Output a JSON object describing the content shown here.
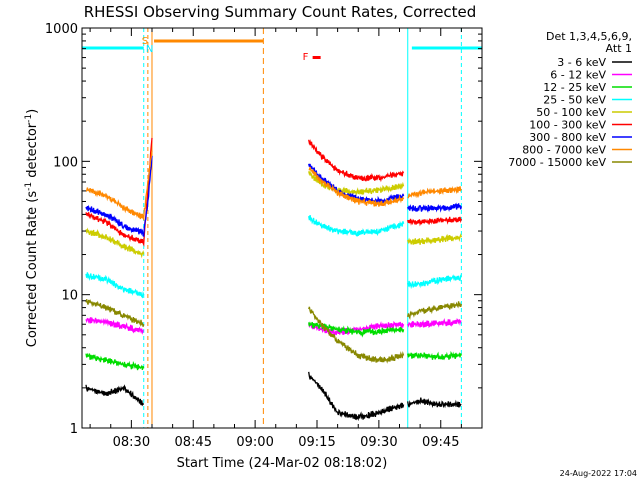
{
  "chart_data": {
    "type": "line",
    "title": "RHESSI Observing Summary Count Rates, Corrected",
    "xlabel": "Start Time (24-Mar-02 08:18:02)",
    "ylabel": "Corrected Count Rate (s⁻¹ detector⁻¹)",
    "ylabel_main": "Corrected Count Rate (s",
    "ylabel_sup1": "-1",
    "ylabel_mid": " detector",
    "ylabel_sup2": "-1",
    "ylabel_end": ")",
    "yscale": "log",
    "xlim": [
      "08:18:02",
      "09:55:00"
    ],
    "ylim": [
      1,
      1000
    ],
    "xticks": [
      "08:30",
      "08:45",
      "09:00",
      "09:15",
      "09:30",
      "09:45"
    ],
    "yticks": [
      "1",
      "10",
      "100",
      "1000"
    ],
    "legend_header": [
      "Det 1,3,4,5,6,9,",
      "Att 1"
    ],
    "legend_position": "right",
    "timestamp": "24-Aug-2022 17:04",
    "flags": [
      {
        "label": "S",
        "time": "08:33",
        "color": "#ff8c00"
      },
      {
        "label": "N",
        "time": "08:34",
        "color": "#00e5ff"
      },
      {
        "label": "F",
        "time": "09:12",
        "color": "#ff0000"
      }
    ],
    "series": [
      {
        "name": "3 - 6 keV",
        "color": "#000000",
        "segments": [
          {
            "x": [
              "08:19",
              "08:24",
              "08:28",
              "08:33"
            ],
            "y": [
              2,
              1.8,
              2.0,
              1.5
            ]
          },
          {
            "x": [
              "09:13",
              "09:16",
              "09:20",
              "09:25",
              "09:30",
              "09:36"
            ],
            "y": [
              2.5,
              2,
              1.3,
              1.2,
              1.3,
              1.5
            ]
          },
          {
            "x": [
              "09:37",
              "09:40",
              "09:45",
              "09:50"
            ],
            "y": [
              1.5,
              1.6,
              1.5,
              1.5
            ]
          }
        ]
      },
      {
        "name": "6 - 12 keV",
        "color": "#ff00ff",
        "segments": [
          {
            "x": [
              "08:19",
              "08:24",
              "08:28",
              "08:33"
            ],
            "y": [
              6.5,
              6.2,
              5.8,
              5.3
            ]
          },
          {
            "x": [
              "09:13",
              "09:16",
              "09:20",
              "09:25",
              "09:30",
              "09:36"
            ],
            "y": [
              6.0,
              5.5,
              5.2,
              5.5,
              5.8,
              6.0
            ]
          },
          {
            "x": [
              "09:37",
              "09:40",
              "09:45",
              "09:50"
            ],
            "y": [
              6.0,
              6.0,
              6.1,
              6.3
            ]
          }
        ]
      },
      {
        "name": "12 - 25 keV",
        "color": "#00dd00",
        "segments": [
          {
            "x": [
              "08:19",
              "08:24",
              "08:28",
              "08:33"
            ],
            "y": [
              3.5,
              3.2,
              3.0,
              2.8
            ]
          },
          {
            "x": [
              "09:13",
              "09:16",
              "09:20",
              "09:25",
              "09:30",
              "09:36"
            ],
            "y": [
              6.0,
              5.8,
              5.5,
              5.2,
              5.3,
              5.5
            ]
          },
          {
            "x": [
              "09:37",
              "09:40",
              "09:45",
              "09:50"
            ],
            "y": [
              3.5,
              3.5,
              3.4,
              3.5
            ]
          }
        ]
      },
      {
        "name": "25 - 50 keV",
        "color": "#00ffff",
        "segments": [
          {
            "x": [
              "08:19",
              "08:24",
              "08:28",
              "08:33"
            ],
            "y": [
              14,
              13,
              11,
              10
            ]
          },
          {
            "x": [
              "09:13",
              "09:16",
              "09:20",
              "09:25",
              "09:30",
              "09:36"
            ],
            "y": [
              38,
              33,
              30,
              29,
              30,
              34
            ]
          },
          {
            "x": [
              "09:37",
              "09:40",
              "09:45",
              "09:50"
            ],
            "y": [
              12,
              12,
              13,
              13.5
            ]
          }
        ]
      },
      {
        "name": "50 - 100 keV",
        "color": "#cccc00",
        "segments": [
          {
            "x": [
              "08:19",
              "08:24",
              "08:28",
              "08:33"
            ],
            "y": [
              30,
              27,
              23,
              20
            ]
          },
          {
            "x": [
              "09:13",
              "09:16",
              "09:20",
              "09:25",
              "09:30",
              "09:36"
            ],
            "y": [
              82,
              68,
              60,
              59,
              61,
              65
            ]
          },
          {
            "x": [
              "09:37",
              "09:40",
              "09:45",
              "09:50"
            ],
            "y": [
              25,
              25,
              26,
              27
            ]
          }
        ]
      },
      {
        "name": "100 - 300 keV",
        "color": "#ff0000",
        "segments": [
          {
            "x": [
              "08:19",
              "08:24",
              "08:28",
              "08:33",
              "08:34",
              "08:35"
            ],
            "y": [
              40,
              35,
              28,
              25,
              60,
              150
            ]
          },
          {
            "x": [
              "09:13",
              "09:16",
              "09:20",
              "09:25",
              "09:30",
              "09:36"
            ],
            "y": [
              140,
              110,
              85,
              75,
              75,
              82
            ]
          },
          {
            "x": [
              "09:37",
              "09:40",
              "09:45",
              "09:50"
            ],
            "y": [
              35,
              35,
              36,
              37
            ]
          }
        ]
      },
      {
        "name": "300 - 800 keV",
        "color": "#0000ff",
        "segments": [
          {
            "x": [
              "08:19",
              "08:24",
              "08:28",
              "08:33",
              "08:34",
              "08:35"
            ],
            "y": [
              45,
              40,
              33,
              29,
              50,
              110
            ]
          },
          {
            "x": [
              "09:13",
              "09:16",
              "09:20",
              "09:25",
              "09:30",
              "09:36"
            ],
            "y": [
              95,
              75,
              60,
              52,
              50,
              55
            ]
          },
          {
            "x": [
              "09:37",
              "09:40",
              "09:45",
              "09:50"
            ],
            "y": [
              45,
              44,
              45,
              46
            ]
          }
        ]
      },
      {
        "name": "800 - 7000 keV",
        "color": "#ff8800",
        "segments": [
          {
            "x": [
              "08:19",
              "08:24",
              "08:28",
              "08:33",
              "08:34",
              "08:35"
            ],
            "y": [
              62,
              55,
              45,
              38,
              70,
              120
            ]
          },
          {
            "x": [
              "09:13",
              "09:16",
              "09:20",
              "09:25",
              "09:30",
              "09:36"
            ],
            "y": [
              90,
              72,
              58,
              50,
              48,
              52
            ]
          },
          {
            "x": [
              "09:37",
              "09:40",
              "09:45",
              "09:50"
            ],
            "y": [
              55,
              58,
              60,
              62
            ]
          }
        ]
      },
      {
        "name": "7000 - 15000 keV",
        "color": "#888800",
        "segments": [
          {
            "x": [
              "08:19",
              "08:24",
              "08:28",
              "08:33"
            ],
            "y": [
              9,
              8,
              7,
              6
            ]
          },
          {
            "x": [
              "09:13",
              "09:16",
              "09:20",
              "09:25",
              "09:30",
              "09:36"
            ],
            "y": [
              8,
              6,
              4.5,
              3.5,
              3.2,
              3.5
            ]
          },
          {
            "x": [
              "09:37",
              "09:40",
              "09:45",
              "09:50"
            ],
            "y": [
              7,
              7.5,
              8,
              8.5
            ]
          }
        ]
      }
    ]
  }
}
